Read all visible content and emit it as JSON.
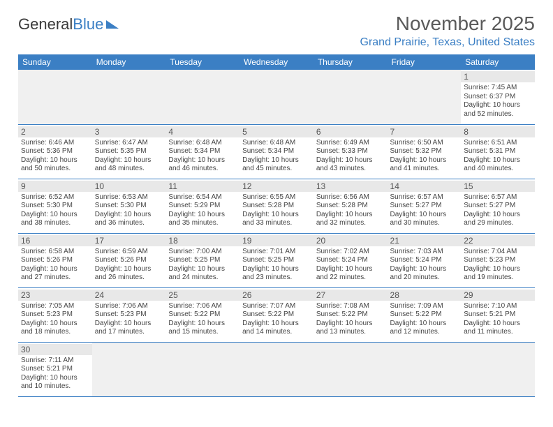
{
  "logo": {
    "text1": "General",
    "text2": "Blue"
  },
  "title": {
    "month": "November 2025",
    "location": "Grand Prairie, Texas, United States"
  },
  "daynames": [
    "Sunday",
    "Monday",
    "Tuesday",
    "Wednesday",
    "Thursday",
    "Friday",
    "Saturday"
  ],
  "colors": {
    "accent": "#3b7fc4",
    "header_bg": "#3b7fc4",
    "daynum_bg": "#e8e8e8",
    "blank_bg": "#f0f0f0"
  },
  "layout": {
    "first_weekday_index": 6,
    "days_in_month": 30
  },
  "days": {
    "1": {
      "sunrise": "7:45 AM",
      "sunset": "6:37 PM",
      "daylight": "10 hours and 52 minutes."
    },
    "2": {
      "sunrise": "6:46 AM",
      "sunset": "5:36 PM",
      "daylight": "10 hours and 50 minutes."
    },
    "3": {
      "sunrise": "6:47 AM",
      "sunset": "5:35 PM",
      "daylight": "10 hours and 48 minutes."
    },
    "4": {
      "sunrise": "6:48 AM",
      "sunset": "5:34 PM",
      "daylight": "10 hours and 46 minutes."
    },
    "5": {
      "sunrise": "6:48 AM",
      "sunset": "5:34 PM",
      "daylight": "10 hours and 45 minutes."
    },
    "6": {
      "sunrise": "6:49 AM",
      "sunset": "5:33 PM",
      "daylight": "10 hours and 43 minutes."
    },
    "7": {
      "sunrise": "6:50 AM",
      "sunset": "5:32 PM",
      "daylight": "10 hours and 41 minutes."
    },
    "8": {
      "sunrise": "6:51 AM",
      "sunset": "5:31 PM",
      "daylight": "10 hours and 40 minutes."
    },
    "9": {
      "sunrise": "6:52 AM",
      "sunset": "5:30 PM",
      "daylight": "10 hours and 38 minutes."
    },
    "10": {
      "sunrise": "6:53 AM",
      "sunset": "5:30 PM",
      "daylight": "10 hours and 36 minutes."
    },
    "11": {
      "sunrise": "6:54 AM",
      "sunset": "5:29 PM",
      "daylight": "10 hours and 35 minutes."
    },
    "12": {
      "sunrise": "6:55 AM",
      "sunset": "5:28 PM",
      "daylight": "10 hours and 33 minutes."
    },
    "13": {
      "sunrise": "6:56 AM",
      "sunset": "5:28 PM",
      "daylight": "10 hours and 32 minutes."
    },
    "14": {
      "sunrise": "6:57 AM",
      "sunset": "5:27 PM",
      "daylight": "10 hours and 30 minutes."
    },
    "15": {
      "sunrise": "6:57 AM",
      "sunset": "5:27 PM",
      "daylight": "10 hours and 29 minutes."
    },
    "16": {
      "sunrise": "6:58 AM",
      "sunset": "5:26 PM",
      "daylight": "10 hours and 27 minutes."
    },
    "17": {
      "sunrise": "6:59 AM",
      "sunset": "5:26 PM",
      "daylight": "10 hours and 26 minutes."
    },
    "18": {
      "sunrise": "7:00 AM",
      "sunset": "5:25 PM",
      "daylight": "10 hours and 24 minutes."
    },
    "19": {
      "sunrise": "7:01 AM",
      "sunset": "5:25 PM",
      "daylight": "10 hours and 23 minutes."
    },
    "20": {
      "sunrise": "7:02 AM",
      "sunset": "5:24 PM",
      "daylight": "10 hours and 22 minutes."
    },
    "21": {
      "sunrise": "7:03 AM",
      "sunset": "5:24 PM",
      "daylight": "10 hours and 20 minutes."
    },
    "22": {
      "sunrise": "7:04 AM",
      "sunset": "5:23 PM",
      "daylight": "10 hours and 19 minutes."
    },
    "23": {
      "sunrise": "7:05 AM",
      "sunset": "5:23 PM",
      "daylight": "10 hours and 18 minutes."
    },
    "24": {
      "sunrise": "7:06 AM",
      "sunset": "5:23 PM",
      "daylight": "10 hours and 17 minutes."
    },
    "25": {
      "sunrise": "7:06 AM",
      "sunset": "5:22 PM",
      "daylight": "10 hours and 15 minutes."
    },
    "26": {
      "sunrise": "7:07 AM",
      "sunset": "5:22 PM",
      "daylight": "10 hours and 14 minutes."
    },
    "27": {
      "sunrise": "7:08 AM",
      "sunset": "5:22 PM",
      "daylight": "10 hours and 13 minutes."
    },
    "28": {
      "sunrise": "7:09 AM",
      "sunset": "5:22 PM",
      "daylight": "10 hours and 12 minutes."
    },
    "29": {
      "sunrise": "7:10 AM",
      "sunset": "5:21 PM",
      "daylight": "10 hours and 11 minutes."
    },
    "30": {
      "sunrise": "7:11 AM",
      "sunset": "5:21 PM",
      "daylight": "10 hours and 10 minutes."
    }
  },
  "labels": {
    "sunrise": "Sunrise: ",
    "sunset": "Sunset: ",
    "daylight": "Daylight: "
  }
}
